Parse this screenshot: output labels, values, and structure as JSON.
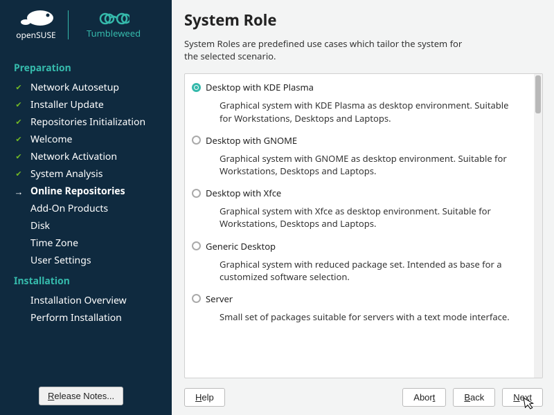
{
  "logo": {
    "suse_label": "openSUSE",
    "tw_label": "Tumbleweed"
  },
  "nav": {
    "section_preparation": "Preparation",
    "items_prep": [
      {
        "label": "Network Autosetup",
        "status": "done"
      },
      {
        "label": "Installer Update",
        "status": "done"
      },
      {
        "label": "Repositories Initialization",
        "status": "done"
      },
      {
        "label": "Welcome",
        "status": "done"
      },
      {
        "label": "Network Activation",
        "status": "done"
      },
      {
        "label": "System Analysis",
        "status": "done"
      },
      {
        "label": "Online Repositories",
        "status": "current"
      },
      {
        "label": "Add-On Products",
        "status": "pending"
      },
      {
        "label": "Disk",
        "status": "pending"
      },
      {
        "label": "Time Zone",
        "status": "pending"
      },
      {
        "label": "User Settings",
        "status": "pending"
      }
    ],
    "section_installation": "Installation",
    "items_inst": [
      {
        "label": "Installation Overview",
        "status": "pending"
      },
      {
        "label": "Perform Installation",
        "status": "pending"
      }
    ]
  },
  "release_notes": "elease Notes...",
  "release_notes_prefix": "R",
  "main": {
    "title": "System Role",
    "subtitle": "System Roles are predefined use cases which tailor the system for the selected scenario."
  },
  "roles": [
    {
      "label": "Desktop with KDE Plasma",
      "desc": "Graphical system with KDE Plasma as desktop environment. Suitable for Workstations, Desktops and Laptops.",
      "selected": true
    },
    {
      "label": "Desktop with GNOME",
      "desc": "Graphical system with GNOME as desktop environment. Suitable for Workstations, Desktops and Laptops.",
      "selected": false
    },
    {
      "label": "Desktop with Xfce",
      "desc": "Graphical system with Xfce as desktop environment. Suitable for Workstations, Desktops and Laptops.",
      "selected": false
    },
    {
      "label": "Generic Desktop",
      "desc": "Graphical system with reduced package set. Intended as base for a customized software selection.",
      "selected": false
    },
    {
      "label": "Server",
      "desc": "Small set of packages suitable for servers with a text mode interface.",
      "selected": false
    }
  ],
  "buttons": {
    "help_prefix": "H",
    "help": "elp",
    "abort_prefix": "A",
    "abort": "bor",
    "abort_suffix": "t",
    "back_prefix": "B",
    "back": "ack",
    "next_prefix": "N",
    "next": "ext"
  }
}
